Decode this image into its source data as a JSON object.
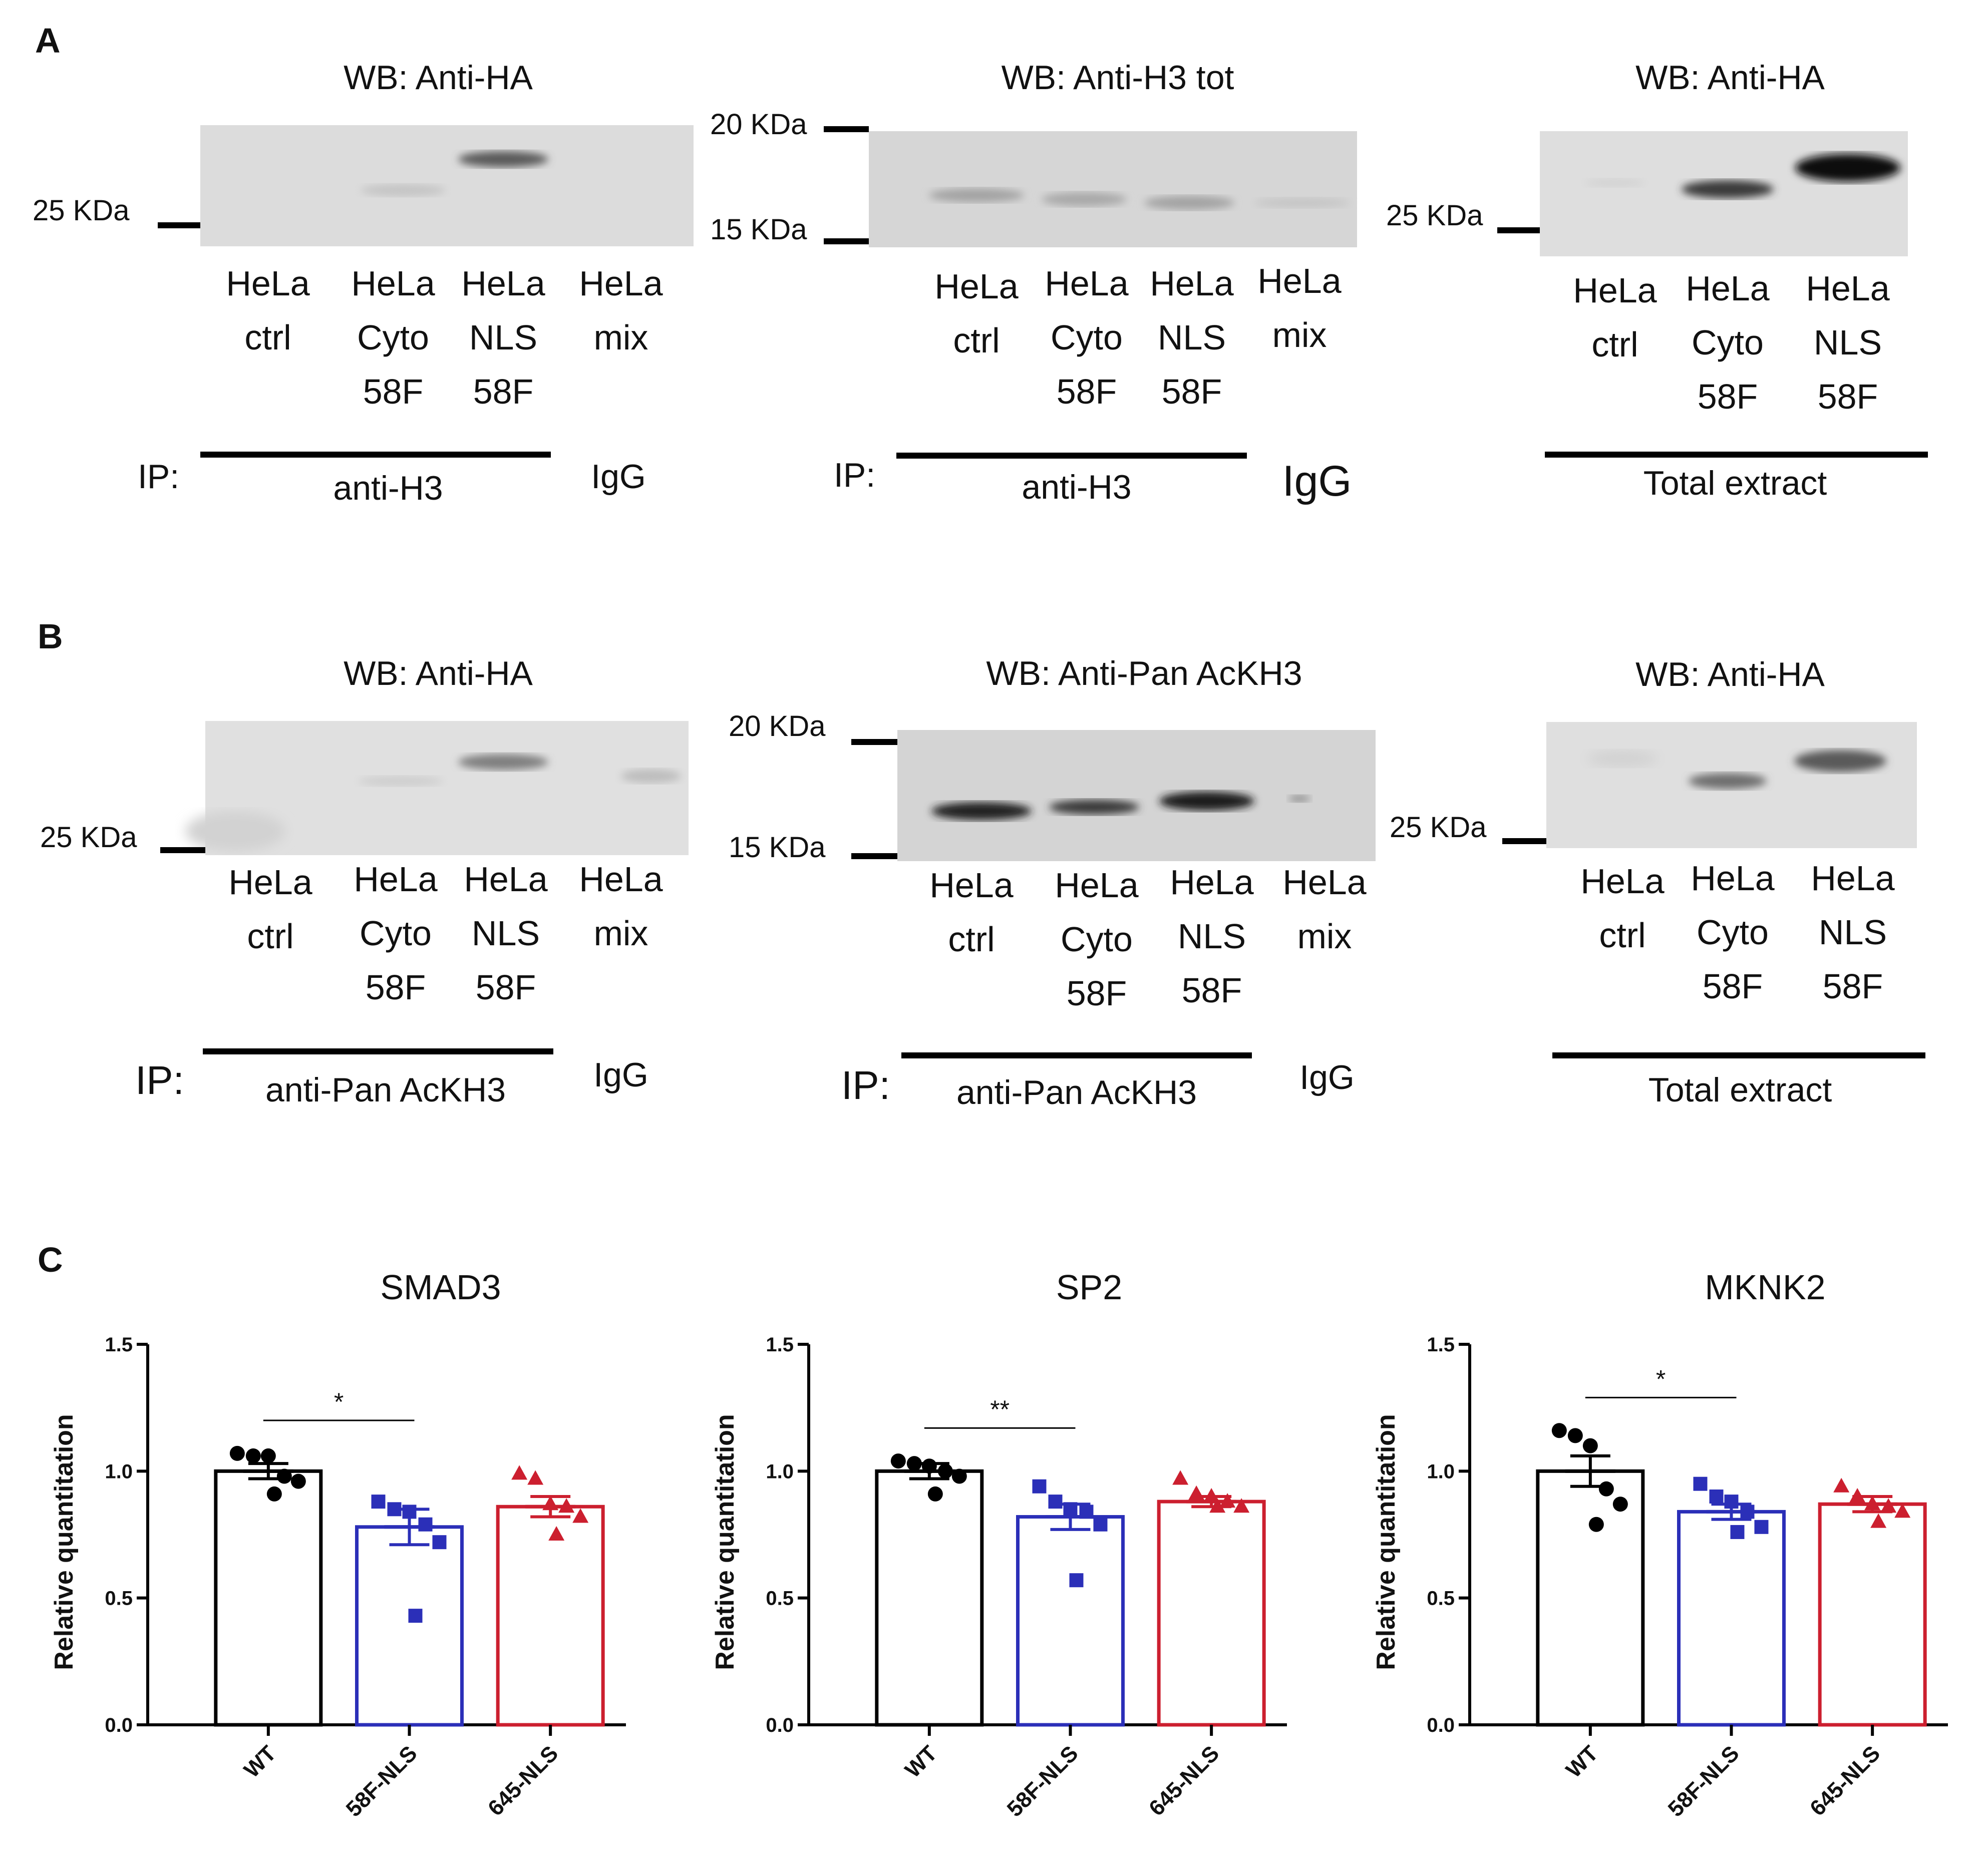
{
  "panels": {
    "A": {
      "label": "A",
      "blots": [
        {
          "title": "WB: Anti-HA",
          "markers": [
            "25 KDa"
          ],
          "lanes": [
            [
              "HeLa",
              "ctrl"
            ],
            [
              "HeLa",
              "Cyto",
              "58F"
            ],
            [
              "HeLa",
              "NLS",
              "58F"
            ],
            [
              "HeLa",
              "mix"
            ]
          ],
          "ip_prefix": "IP:",
          "ip_label": "anti-H3",
          "ip_extra": "IgG"
        },
        {
          "title": "WB: Anti-H3 tot",
          "markers": [
            "20 KDa",
            "15 KDa"
          ],
          "lanes": [
            [
              "HeLa",
              "ctrl"
            ],
            [
              "HeLa",
              "Cyto",
              "58F"
            ],
            [
              "HeLa",
              "NLS",
              "58F"
            ],
            [
              "HeLa",
              "mix"
            ]
          ],
          "ip_prefix": "IP:",
          "ip_label": "anti-H3",
          "ip_extra": "IgG"
        },
        {
          "title": "WB: Anti-HA",
          "markers": [
            "25 KDa"
          ],
          "lanes": [
            [
              "HeLa",
              "ctrl"
            ],
            [
              "HeLa",
              "Cyto",
              "58F"
            ],
            [
              "HeLa",
              "NLS",
              "58F"
            ]
          ],
          "ip_prefix": "",
          "ip_label": "Total extract",
          "ip_extra": ""
        }
      ]
    },
    "B": {
      "label": "B",
      "blots": [
        {
          "title": "WB: Anti-HA",
          "markers": [
            "25 KDa"
          ],
          "lanes": [
            [
              "HeLa",
              "ctrl"
            ],
            [
              "HeLa",
              "Cyto",
              "58F"
            ],
            [
              "HeLa",
              "NLS",
              "58F"
            ],
            [
              "HeLa",
              "mix"
            ]
          ],
          "ip_prefix": "IP:",
          "ip_label": "anti-Pan AcKH3",
          "ip_extra": "IgG"
        },
        {
          "title": "WB: Anti-Pan AcKH3",
          "markers": [
            "20 KDa",
            "15 KDa"
          ],
          "lanes": [
            [
              "HeLa",
              "ctrl"
            ],
            [
              "HeLa",
              "Cyto",
              "58F"
            ],
            [
              "HeLa",
              "NLS",
              "58F"
            ],
            [
              "HeLa",
              "mix"
            ]
          ],
          "ip_prefix": "IP:",
          "ip_label": "anti-Pan AcKH3",
          "ip_extra": "IgG"
        },
        {
          "title": "WB: Anti-HA",
          "markers": [
            "25 KDa"
          ],
          "lanes": [
            [
              "HeLa",
              "ctrl"
            ],
            [
              "HeLa",
              "Cyto",
              "58F"
            ],
            [
              "HeLa",
              "NLS",
              "58F"
            ]
          ],
          "ip_prefix": "",
          "ip_label": "Total extract",
          "ip_extra": ""
        }
      ]
    },
    "C": {
      "label": "C"
    }
  },
  "chart_data": [
    {
      "type": "bar",
      "title": "SMAD3",
      "ylabel": "Relative quantitation",
      "xlabel": "",
      "ylim": [
        0,
        1.5
      ],
      "yticks": [
        "0.0",
        "0.5",
        "1.0",
        "1.5"
      ],
      "categories": [
        "WT",
        "58F-NLS",
        "645-NLS"
      ],
      "means": [
        1.0,
        0.78,
        0.86
      ],
      "sem": [
        0.03,
        0.07,
        0.04
      ],
      "points": [
        [
          1.07,
          1.06,
          1.06,
          0.98,
          0.96,
          0.91
        ],
        [
          0.88,
          0.85,
          0.84,
          0.79,
          0.72,
          0.43
        ],
        [
          0.99,
          0.97,
          0.87,
          0.86,
          0.82,
          0.75
        ]
      ],
      "significance": {
        "label": "*",
        "from": 0,
        "to": 1
      },
      "colors": [
        "#000000",
        "#2b2fb8",
        "#cc1f2f"
      ]
    },
    {
      "type": "bar",
      "title": "SP2",
      "ylabel": "Relative quantitation",
      "xlabel": "",
      "ylim": [
        0,
        1.5
      ],
      "yticks": [
        "0.0",
        "0.5",
        "1.0",
        "1.5"
      ],
      "categories": [
        "WT",
        "58F-NLS",
        "645-NLS"
      ],
      "means": [
        1.0,
        0.82,
        0.88
      ],
      "sem": [
        0.03,
        0.05,
        0.02
      ],
      "points": [
        [
          1.04,
          1.03,
          1.02,
          1.0,
          0.98,
          0.91
        ],
        [
          0.94,
          0.88,
          0.85,
          0.84,
          0.79,
          0.57
        ],
        [
          0.97,
          0.91,
          0.9,
          0.88,
          0.86,
          0.86
        ]
      ],
      "significance": {
        "label": "**",
        "from": 0,
        "to": 1
      },
      "colors": [
        "#000000",
        "#2b2fb8",
        "#cc1f2f"
      ]
    },
    {
      "type": "bar",
      "title": "MKNK2",
      "ylabel": "Relative quantitation",
      "xlabel": "",
      "ylim": [
        0,
        1.5
      ],
      "yticks": [
        "0.0",
        "0.5",
        "1.0",
        "1.5"
      ],
      "categories": [
        "WT",
        "58F-NLS",
        "645-NLS"
      ],
      "means": [
        1.0,
        0.84,
        0.87
      ],
      "sem": [
        0.06,
        0.03,
        0.03
      ],
      "points": [
        [
          1.16,
          1.14,
          1.1,
          0.93,
          0.87,
          0.79
        ],
        [
          0.95,
          0.9,
          0.88,
          0.84,
          0.78,
          0.76
        ],
        [
          0.94,
          0.9,
          0.87,
          0.86,
          0.84,
          0.8
        ]
      ],
      "significance": {
        "label": "*",
        "from": 0,
        "to": 1
      },
      "colors": [
        "#000000",
        "#2b2fb8",
        "#cc1f2f"
      ]
    }
  ]
}
